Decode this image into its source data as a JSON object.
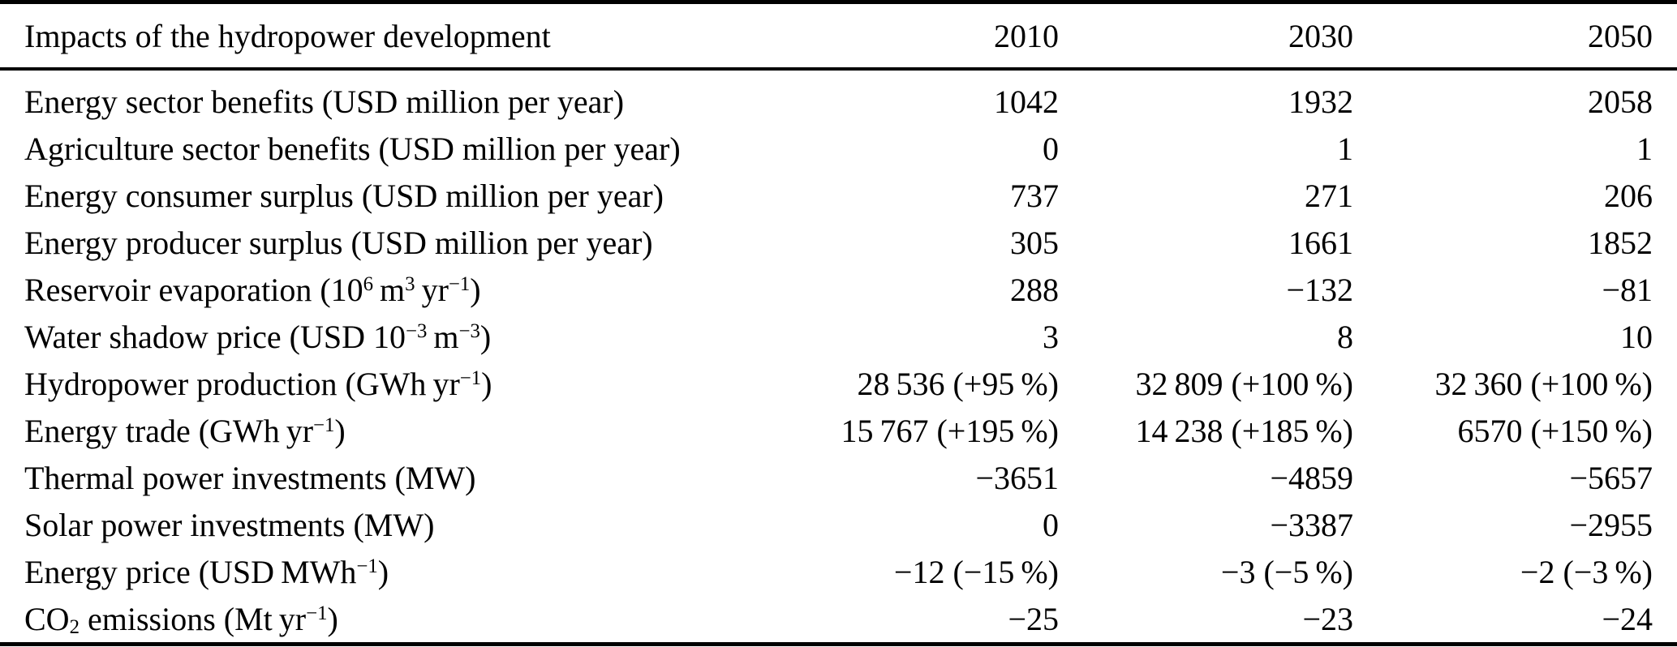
{
  "colors": {
    "text": "#000000",
    "background": "#ffffff",
    "rule": "#000000"
  },
  "table": {
    "title_column_header": "Impacts of the hydropower development",
    "year_columns": [
      "2010",
      "2030",
      "2050"
    ],
    "rows": [
      {
        "label": "Energy sector benefits (USD million per year)",
        "values": [
          "1042",
          "1932",
          "2058"
        ]
      },
      {
        "label": "Agriculture sector benefits (USD million per year)",
        "values": [
          "0",
          "1",
          "1"
        ]
      },
      {
        "label": "Energy consumer surplus (USD million per year)",
        "values": [
          "737",
          "271",
          "206"
        ]
      },
      {
        "label": "Energy producer surplus (USD million per year)",
        "values": [
          "305",
          "1661",
          "1852"
        ]
      },
      {
        "label": "Reservoir evaporation (10^{6} m^{3} yr^{−1})",
        "values": [
          "288",
          "−132",
          "−81"
        ]
      },
      {
        "label": "Water shadow price (USD 10^{−3} m^{−3})",
        "values": [
          "3",
          "8",
          "10"
        ]
      },
      {
        "label": "Hydropower production (GWh yr^{−1})",
        "values": [
          "28 536 (+95 %)",
          "32 809 (+100 %)",
          "32 360 (+100 %)"
        ]
      },
      {
        "label": "Energy trade (GWh yr^{−1})",
        "values": [
          "15 767 (+195 %)",
          "14 238 (+185 %)",
          "6570 (+150 %)"
        ]
      },
      {
        "label": "Thermal power investments (MW)",
        "values": [
          "−3651",
          "−4859",
          "−5657"
        ]
      },
      {
        "label": "Solar power investments (MW)",
        "values": [
          "0",
          "−3387",
          "−2955"
        ]
      },
      {
        "label": "Energy price (USD MWh^{−1})",
        "values": [
          "−12 (−15 %)",
          "−3 (−5 %)",
          "−2 (−3 %)"
        ]
      },
      {
        "label": "CO_{2} emissions (Mt yr^{−1})",
        "values": [
          "−25",
          "−23",
          "−24"
        ]
      }
    ]
  }
}
